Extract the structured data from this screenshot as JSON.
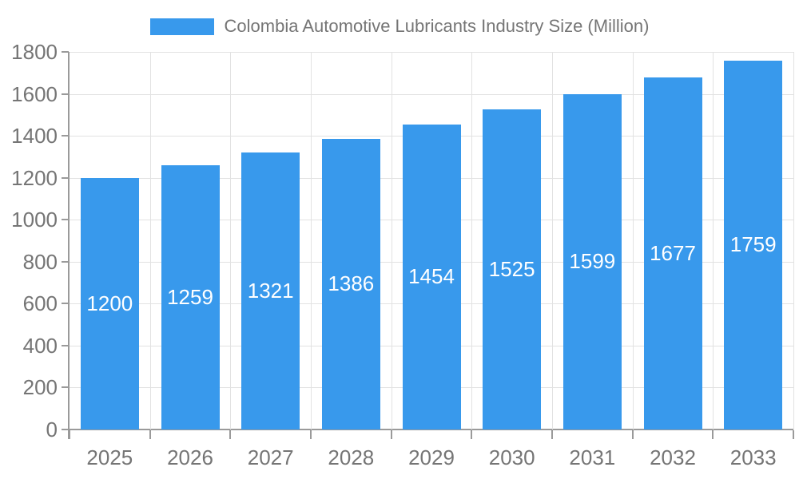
{
  "legend": {
    "label": "Colombia Automotive Lubricants Industry Size (Million)"
  },
  "colors": {
    "bar": "#3899EC",
    "axis_label": "#757575",
    "value_label": "#ffffff",
    "grid": "#e2e2e2",
    "axis_line": "#9a9a9a",
    "background": "#ffffff"
  },
  "chart_data": {
    "type": "bar",
    "title": "Colombia Automotive Lubricants Industry Size (Million)",
    "categories": [
      "2025",
      "2026",
      "2027",
      "2028",
      "2029",
      "2030",
      "2031",
      "2032",
      "2033"
    ],
    "values": [
      1200,
      1259,
      1321,
      1386,
      1454,
      1525,
      1599,
      1677,
      1759
    ],
    "xlabel": "",
    "ylabel": "",
    "ylim": [
      0,
      1800
    ],
    "ytick_interval": 200,
    "ytick_labels": [
      "0",
      "200",
      "400",
      "600",
      "800",
      "1000",
      "1200",
      "1400",
      "1600",
      "1800"
    ],
    "grid": true,
    "legend_position": "top",
    "value_label_position": "inside-center"
  }
}
